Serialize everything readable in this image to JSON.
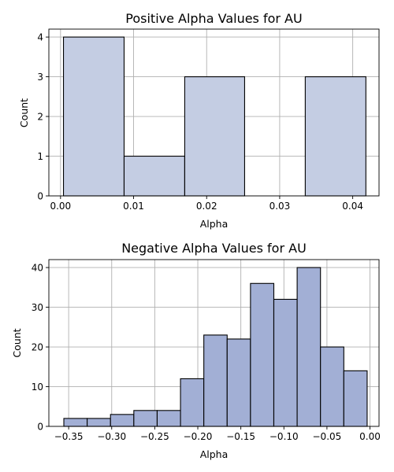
{
  "chart_data": [
    {
      "type": "bar",
      "subtype": "histogram",
      "title": "Positive Alpha Values for AU",
      "xlabel": "Alpha",
      "ylabel": "Count",
      "xlim": [
        -0.0016,
        0.0436
      ],
      "ylim": [
        0,
        4.2
      ],
      "xticks": [
        0.0,
        0.01,
        0.02,
        0.03,
        0.04
      ],
      "xtick_labels": [
        "0.00",
        "0.01",
        "0.02",
        "0.03",
        "0.04"
      ],
      "yticks": [
        0,
        1,
        2,
        3,
        4
      ],
      "ytick_labels": [
        "0",
        "1",
        "2",
        "3",
        "4"
      ],
      "bins": [
        {
          "start": 0.0004,
          "end": 0.0087,
          "count": 4
        },
        {
          "start": 0.0087,
          "end": 0.017,
          "count": 1
        },
        {
          "start": 0.017,
          "end": 0.0252,
          "count": 3
        },
        {
          "start": 0.0252,
          "end": 0.0335,
          "count": 0
        },
        {
          "start": 0.0335,
          "end": 0.0418,
          "count": 3
        }
      ],
      "bar_color": "#c4cde3",
      "edge_color": "#000000",
      "grid": true
    },
    {
      "type": "bar",
      "subtype": "histogram",
      "title": "Negative Alpha Values for AU",
      "xlabel": "Alpha",
      "ylabel": "Count",
      "xlim": [
        -0.373,
        0.0105
      ],
      "ylim": [
        0,
        42
      ],
      "xticks": [
        -0.35,
        -0.3,
        -0.25,
        -0.2,
        -0.15,
        -0.1,
        -0.05,
        0.0
      ],
      "xtick_labels": [
        "−0.35",
        "−0.30",
        "−0.25",
        "−0.20",
        "−0.15",
        "−0.10",
        "−0.05",
        "0.00"
      ],
      "yticks": [
        0,
        10,
        20,
        30,
        40
      ],
      "ytick_labels": [
        "0",
        "10",
        "20",
        "30",
        "40"
      ],
      "bins": [
        {
          "start": -0.3556,
          "end": -0.3285,
          "count": 2
        },
        {
          "start": -0.3285,
          "end": -0.3014,
          "count": 2
        },
        {
          "start": -0.3014,
          "end": -0.2743,
          "count": 3
        },
        {
          "start": -0.2743,
          "end": -0.2472,
          "count": 4
        },
        {
          "start": -0.2472,
          "end": -0.2201,
          "count": 4
        },
        {
          "start": -0.2201,
          "end": -0.193,
          "count": 12
        },
        {
          "start": -0.193,
          "end": -0.1659,
          "count": 23
        },
        {
          "start": -0.1659,
          "end": -0.1388,
          "count": 22
        },
        {
          "start": -0.1388,
          "end": -0.1117,
          "count": 36
        },
        {
          "start": -0.1117,
          "end": -0.0846,
          "count": 32
        },
        {
          "start": -0.0846,
          "end": -0.0575,
          "count": 40
        },
        {
          "start": -0.0575,
          "end": -0.0304,
          "count": 20
        },
        {
          "start": -0.0304,
          "end": -0.0033,
          "count": 14
        }
      ],
      "bar_color": "#a2afd5",
      "edge_color": "#000000",
      "grid": true
    }
  ]
}
